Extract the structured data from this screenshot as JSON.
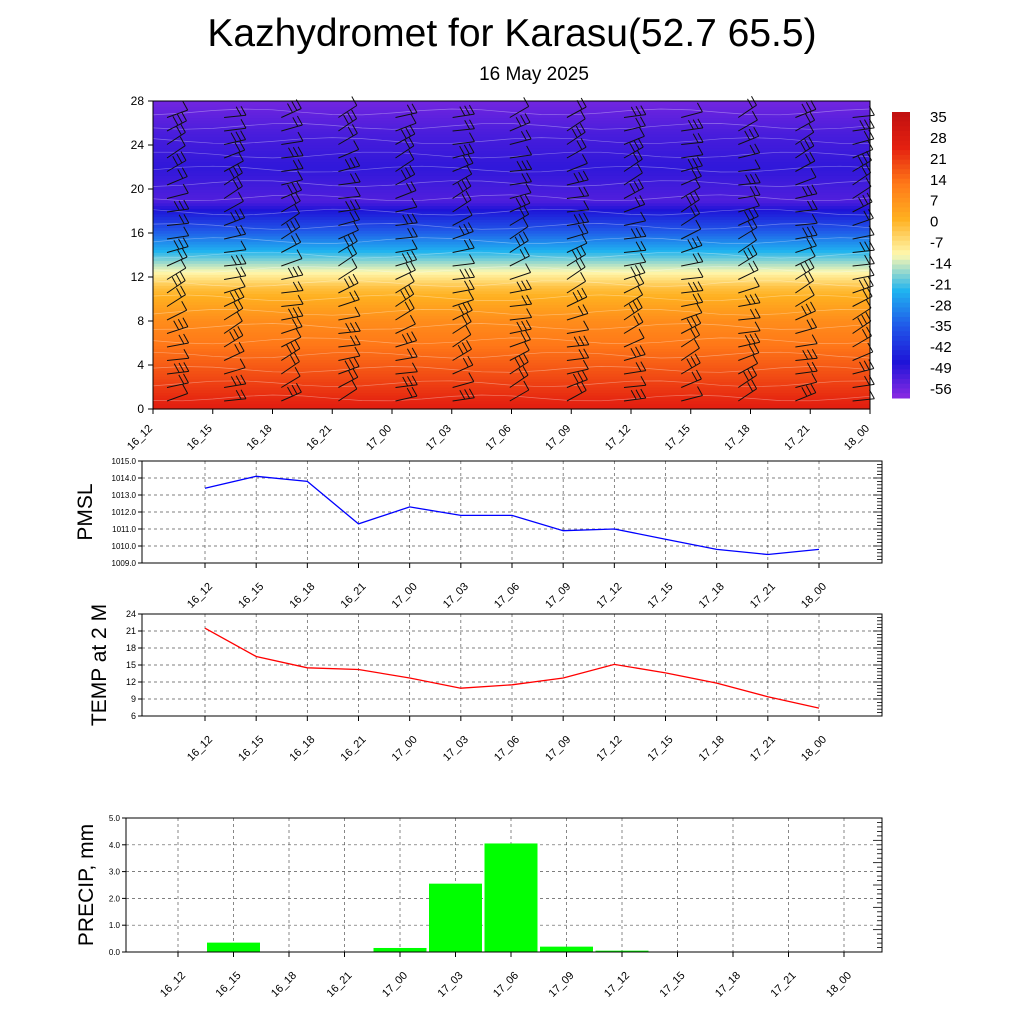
{
  "title": "Kazhydromet for Karasu(52.7 65.5)",
  "subtitle": "16 May 2025",
  "times": [
    "16_12",
    "16_15",
    "16_18",
    "16_21",
    "17_00",
    "17_03",
    "17_06",
    "17_09",
    "17_12",
    "17_15",
    "17_18",
    "17_21",
    "18_00"
  ],
  "chart_data": [
    {
      "type": "heatmap",
      "name": "temperature-wind cross-section",
      "x": [
        "16_12",
        "16_15",
        "16_18",
        "16_21",
        "17_00",
        "17_03",
        "17_06",
        "17_09",
        "17_12",
        "17_15",
        "17_18",
        "17_21",
        "18_00"
      ],
      "ylim": [
        0,
        28
      ],
      "yticks": [
        0,
        4,
        8,
        12,
        16,
        20,
        24,
        28
      ],
      "colorbar_labels": [
        "35",
        "28",
        "21",
        "14",
        "7",
        "0",
        "-7",
        "-14",
        "-21",
        "-28",
        "-35",
        "-42",
        "-49",
        "-56"
      ],
      "colorbar_range": [
        -63,
        42
      ],
      "colors": [
        "#8a2be2",
        "#1e14d8",
        "#2058e8",
        "#20b4f0",
        "#fff9b0",
        "#ffb020",
        "#ff7818",
        "#e42010",
        "#c01010"
      ],
      "temperature_profile": [
        {
          "h": 0,
          "t": 30
        },
        {
          "h": 4,
          "t": 20
        },
        {
          "h": 8,
          "t": 11
        },
        {
          "h": 11,
          "t": 0
        },
        {
          "h": 13,
          "t": -14
        },
        {
          "h": 16,
          "t": -35
        },
        {
          "h": 19,
          "t": -56
        },
        {
          "h": 22,
          "t": -52
        },
        {
          "h": 25,
          "t": -55
        },
        {
          "h": 28,
          "t": -60
        }
      ],
      "grid": false
    },
    {
      "type": "line",
      "ylabel": "PMSL",
      "ylim": [
        1009.0,
        1015.0
      ],
      "yticks": [
        "1009.0",
        "1010.0",
        "1011.0",
        "1012.0",
        "1013.0",
        "1014.0",
        "1015.0"
      ],
      "categories": [
        "16_12",
        "16_15",
        "16_18",
        "16_21",
        "17_00",
        "17_03",
        "17_06",
        "17_09",
        "17_12",
        "17_15",
        "17_18",
        "17_21",
        "18_00"
      ],
      "values": [
        1013.4,
        1014.1,
        1013.8,
        1011.3,
        1012.3,
        1011.8,
        1011.8,
        1010.9,
        1011.0,
        1010.4,
        1009.8,
        1009.5,
        1009.8
      ],
      "color": "#0000ff",
      "grid": true
    },
    {
      "type": "line",
      "ylabel": "TEMP at 2 M",
      "ylim": [
        6,
        24
      ],
      "yticks": [
        "6",
        "9",
        "12",
        "15",
        "18",
        "21",
        "24"
      ],
      "categories": [
        "16_12",
        "16_15",
        "16_18",
        "16_21",
        "17_00",
        "17_03",
        "17_06",
        "17_09",
        "17_12",
        "17_15",
        "17_18",
        "17_21",
        "18_00"
      ],
      "values": [
        21.5,
        16.5,
        14.5,
        14.2,
        12.7,
        10.9,
        11.5,
        12.7,
        15.1,
        13.6,
        11.8,
        9.4,
        7.4
      ],
      "color": "#ff0000",
      "grid": true
    },
    {
      "type": "bar",
      "ylabel": "PRECIP, mm",
      "ylim": [
        0.0,
        5.0
      ],
      "yticks": [
        "0.0",
        "1.0",
        "2.0",
        "3.0",
        "4.0",
        "5.0"
      ],
      "categories": [
        "16_15",
        "16_18",
        "16_21",
        "17_00",
        "17_03",
        "17_06",
        "17_09",
        "17_12",
        "17_15",
        "17_18",
        "17_21",
        "18_00"
      ],
      "values": [
        0.35,
        0,
        0,
        0.15,
        2.55,
        4.05,
        0.2,
        0.05,
        0,
        0,
        0,
        0
      ],
      "color": "#00ff00",
      "grid": true
    }
  ]
}
